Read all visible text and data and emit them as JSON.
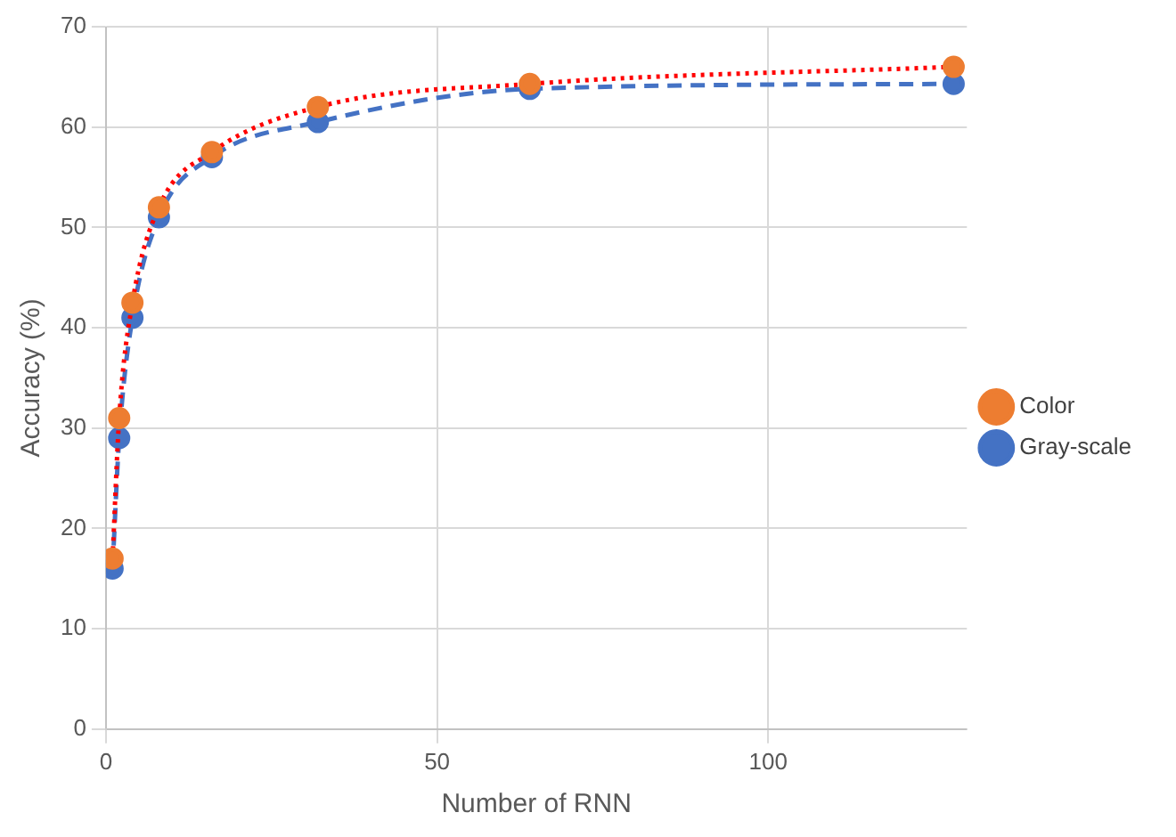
{
  "chart_data": {
    "type": "line",
    "xlabel": "Number of RNN",
    "ylabel": "Accuracy (%)",
    "x": [
      1,
      2,
      4,
      8,
      16,
      32,
      64,
      128
    ],
    "series": [
      {
        "name": "Gray-scale",
        "color": "#4472c4",
        "line_style": "dashed",
        "values": [
          16,
          29,
          41,
          51,
          57,
          60.5,
          63.8,
          64.3
        ]
      },
      {
        "name": "Color",
        "color": "#ff0000",
        "colors": [
          "#ed7d31",
          "#ed7d31",
          "#ed7d31",
          "#ed7d31",
          "#ed7d31",
          "#ed7d31",
          "#ed7d31",
          "#ed7d31"
        ],
        "line_style": "dotted",
        "values": [
          17,
          31,
          42.5,
          52,
          57.5,
          62,
          64.3,
          66
        ]
      }
    ],
    "xlim": [
      0,
      130
    ],
    "xticks": [
      0,
      50,
      100
    ],
    "ylim": [
      0,
      70
    ],
    "yticks": [
      0,
      10,
      20,
      30,
      40,
      50,
      60,
      70
    ],
    "grid": true,
    "legend": "right",
    "marker": "circle"
  }
}
